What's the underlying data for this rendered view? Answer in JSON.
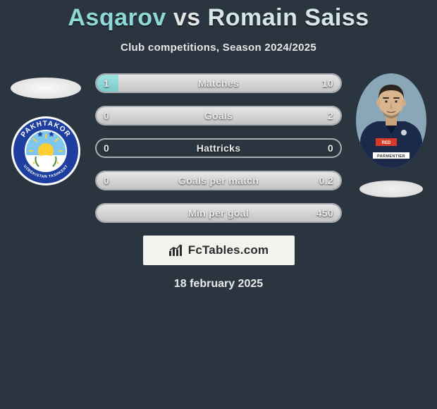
{
  "title": {
    "player1": "Asqarov",
    "vs": "vs",
    "player2": "Romain Saiss"
  },
  "subtitle": "Club competitions, Season 2024/2025",
  "colors": {
    "background": "#2a3540",
    "player1_accent": "#8fd8d8",
    "player2_accent": "#d6e6e6",
    "bar_border": "rgba(255,255,255,0.6)",
    "bar_fill_left": "#7fc9c9",
    "bar_fill_right": "#c4c4c4",
    "text": "#eaeaea"
  },
  "stats": [
    {
      "label": "Matches",
      "left_value": "1",
      "right_value": "10",
      "left_pct": 9,
      "right_pct": 91
    },
    {
      "label": "Goals",
      "left_value": "0",
      "right_value": "2",
      "left_pct": 0,
      "right_pct": 100
    },
    {
      "label": "Hattricks",
      "left_value": "0",
      "right_value": "0",
      "left_pct": 0,
      "right_pct": 0
    },
    {
      "label": "Goals per match",
      "left_value": "0",
      "right_value": "0.2",
      "left_pct": 0,
      "right_pct": 100
    },
    {
      "label": "Min per goal",
      "left_value": "",
      "right_value": "450",
      "left_pct": 0,
      "right_pct": 100
    }
  ],
  "branding": {
    "site": "FcTables.com"
  },
  "date": "18 february 2025",
  "left_club": {
    "name": "Pakhtakor Uzbekistan Tashkent",
    "badge": {
      "ring_outer": "#ffffff",
      "ring_blue": "#1f3fa0",
      "inner_bg": "#ffffff",
      "sun_color": "#ffcf33",
      "sky_color": "#7fc7ef",
      "text_color": "#ffffff",
      "star_color": "#1f3fa0",
      "top_text": "PAKHTAKOR",
      "bottom_text": "UZBEKISTAN  TASHKENT"
    }
  },
  "right_player": {
    "name": "Romain Saiss",
    "shirt_color": "#1b2a4a",
    "shirt_accent": "#d83a2a",
    "sponsor_bar": "#ffffff",
    "skin": "#d9b58f",
    "hair": "#2b2520",
    "sky": "#8aa7b8"
  }
}
